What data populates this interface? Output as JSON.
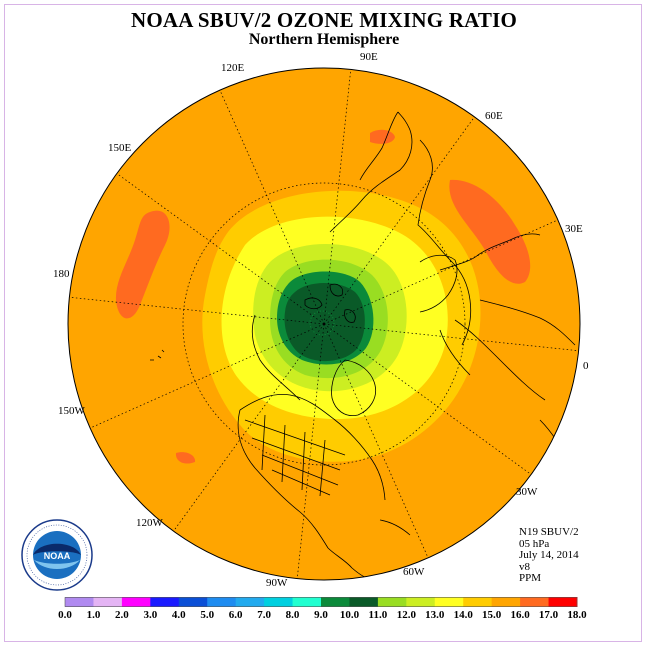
{
  "title": "NOAA SBUV/2 OZONE MIXING RATIO",
  "subtitle": "Northern Hemisphere",
  "longitude_labels": [
    "90E",
    "60E",
    "30E",
    "0",
    "30W",
    "60W",
    "90W",
    "120W",
    "150W",
    "180",
    "150E",
    "120E"
  ],
  "info": {
    "satellite": "N19 SBUV/2",
    "pressure_level": "05 hPa",
    "date": "July 14, 2014",
    "version": "v8",
    "units": "PPM"
  },
  "logo": {
    "name": "NOAA",
    "ring_text": "NATIONAL OCEANIC AND ATMOSPHERIC ADMINISTRATION · U.S. DEPARTMENT OF COMMERCE"
  },
  "colorbar": {
    "tick_labels": [
      "0.0",
      "1.0",
      "2.0",
      "3.0",
      "4.0",
      "5.0",
      "6.0",
      "7.0",
      "8.0",
      "9.0",
      "10.0",
      "11.0",
      "12.0",
      "13.0",
      "14.0",
      "15.0",
      "16.0",
      "17.0",
      "18.0"
    ],
    "colors": [
      "#b08af0",
      "#e4b4f4",
      "#ff00ff",
      "#1a1aff",
      "#0b4fd6",
      "#1e8cf0",
      "#22aaee",
      "#00d0e0",
      "#20ffd0",
      "#0b8a3a",
      "#0a5a28",
      "#99dd22",
      "#ccee22",
      "#ffff22",
      "#ffcc00",
      "#ffa500",
      "#ff6a20",
      "#ff0000",
      "#8b5a3a"
    ]
  },
  "map": {
    "background_value_ppm": 14.5,
    "pole_max_value_ppm": 9.5
  }
}
